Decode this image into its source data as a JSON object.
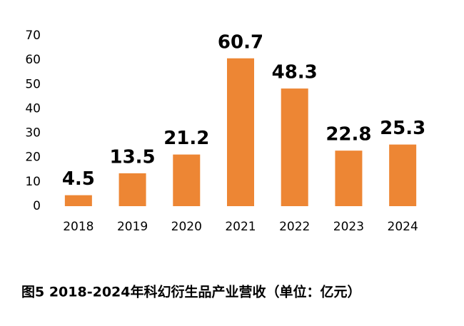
{
  "chart_data": {
    "type": "bar",
    "title": "图5 2018-2024年科幻衍生品产业营收（单位：亿元）",
    "categories": [
      "2018",
      "2019",
      "2020",
      "2021",
      "2022",
      "2023",
      "2024"
    ],
    "values": [
      4.5,
      13.5,
      21.2,
      60.7,
      48.3,
      22.8,
      25.3
    ],
    "color": "#ed8634",
    "ylim": [
      0,
      70
    ],
    "yticks": [
      0,
      10,
      20,
      30,
      40,
      50,
      60,
      70
    ],
    "grid": false
  }
}
